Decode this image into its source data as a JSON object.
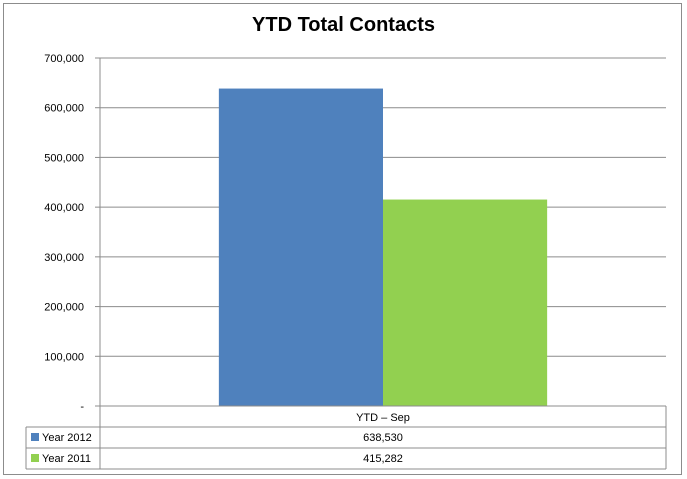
{
  "chart_data": {
    "type": "bar",
    "title": "YTD Total Contacts",
    "categories": [
      "YTD – Sep"
    ],
    "series": [
      {
        "name": "Year 2012",
        "values": [
          638530
        ],
        "value_labels": [
          "638,530"
        ],
        "color": "#4f81bd"
      },
      {
        "name": "Year 2011",
        "values": [
          415282
        ],
        "value_labels": [
          "415,282"
        ],
        "color": "#92d050"
      }
    ],
    "y_ticks": [
      "-",
      "100,000",
      "200,000",
      "300,000",
      "400,000",
      "500,000",
      "600,000",
      "700,000"
    ],
    "ylim": [
      0,
      700000
    ],
    "grid": true,
    "legend": "data-table-left"
  }
}
